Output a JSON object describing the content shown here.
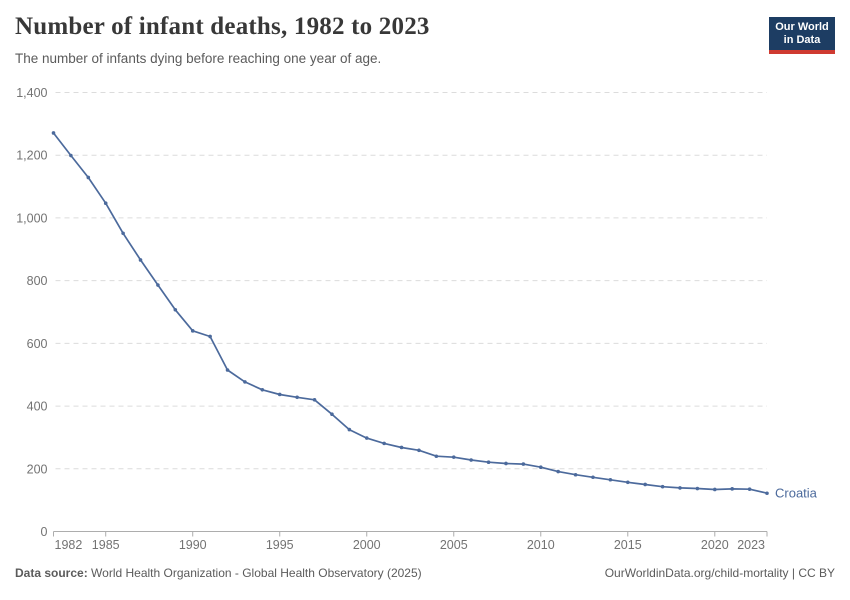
{
  "header": {
    "title": "Number of infant deaths, 1982 to 2023",
    "subtitle": "The number of infants dying before reaching one year of age.",
    "logo": {
      "line1": "Our World",
      "line2": "in Data"
    }
  },
  "chart_data": {
    "type": "line",
    "title": "Number of infant deaths, 1982 to 2023",
    "subtitle": "The number of infants dying before reaching one year of age.",
    "xlabel": "",
    "ylabel": "",
    "xlim": [
      1982,
      2023
    ],
    "ylim": [
      0,
      1400
    ],
    "xticks": [
      1982,
      1985,
      1990,
      1995,
      2000,
      2005,
      2010,
      2015,
      2020,
      2023
    ],
    "yticks": [
      0,
      200,
      400,
      600,
      800,
      1000,
      1200,
      1400
    ],
    "grid": "horizontal-dashed",
    "legend_position": "end-of-line-label",
    "x": [
      1982,
      1983,
      1984,
      1985,
      1986,
      1987,
      1988,
      1989,
      1990,
      1991,
      1992,
      1993,
      1994,
      1995,
      1996,
      1997,
      1998,
      1999,
      2000,
      2001,
      2002,
      2003,
      2004,
      2005,
      2006,
      2007,
      2008,
      2009,
      2010,
      2011,
      2012,
      2013,
      2014,
      2015,
      2016,
      2017,
      2018,
      2019,
      2020,
      2021,
      2022,
      2023
    ],
    "series": [
      {
        "name": "Croatia",
        "color": "#4C6A9C",
        "values": [
          1271,
          1199,
          1129,
          1047,
          951,
          866,
          786,
          707,
          640,
          622,
          515,
          477,
          452,
          437,
          428,
          420,
          374,
          325,
          298,
          281,
          268,
          259,
          240,
          237,
          228,
          221,
          217,
          215,
          205,
          191,
          181,
          173,
          165,
          157,
          150,
          143,
          139,
          137,
          134,
          136,
          135,
          122
        ]
      }
    ]
  },
  "footer": {
    "datasource_label": "Data source:",
    "datasource_text": " World Health Organization - Global Health Observatory (2025)",
    "link_text": "OurWorldinData.org/child-mortality | CC BY"
  },
  "colors": {
    "line": "#4C6A9C",
    "logo_background": "#1D3D63",
    "logo_stripe": "#CF3A31",
    "gridline": "#DCDCDC",
    "axis": "#ADADAD",
    "tick_label": "#737373",
    "title_text": "#383838",
    "subtitle_text": "#5B5B5B"
  }
}
